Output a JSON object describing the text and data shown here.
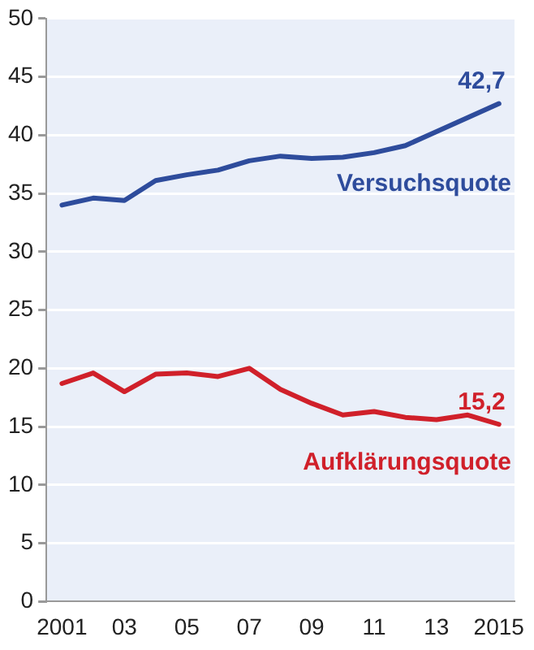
{
  "chart_data": {
    "type": "line",
    "categories": [
      "2001",
      null,
      "03",
      null,
      "05",
      null,
      "07",
      null,
      "09",
      null,
      "11",
      null,
      "13",
      null,
      "2015"
    ],
    "series": [
      {
        "name": "Versuchsquote",
        "color": "#2e4c9c",
        "values": [
          34.0,
          34.6,
          34.4,
          36.1,
          36.6,
          37.0,
          37.8,
          38.2,
          38.0,
          38.1,
          38.5,
          39.1,
          40.3,
          41.5,
          42.7
        ],
        "value_labels": [
          null,
          null,
          null,
          null,
          null,
          null,
          null,
          null,
          null,
          null,
          null,
          null,
          null,
          null,
          "42,7"
        ]
      },
      {
        "name": "Aufklärungsquote",
        "color": "#d0202a",
        "values": [
          18.7,
          19.6,
          18.0,
          19.5,
          19.6,
          19.3,
          20.0,
          18.2,
          17.0,
          16.0,
          16.3,
          15.8,
          15.6,
          16.0,
          15.2
        ],
        "value_labels": [
          null,
          null,
          null,
          null,
          null,
          null,
          null,
          null,
          null,
          null,
          null,
          null,
          null,
          null,
          "15,2"
        ]
      }
    ],
    "ylim": [
      0,
      50
    ],
    "yticks": [
      0,
      5,
      10,
      15,
      20,
      25,
      30,
      35,
      40,
      45,
      50
    ],
    "grid": "y",
    "legend": false,
    "marker": "none",
    "line_style": "solid"
  }
}
